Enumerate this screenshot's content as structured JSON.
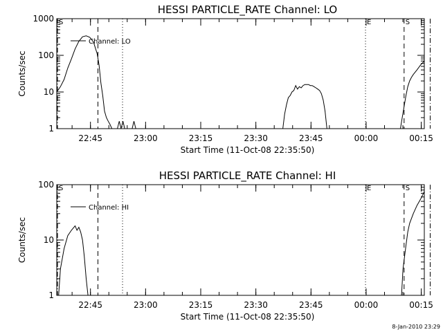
{
  "footer": {
    "date": "8-Jan-2010 23:29"
  },
  "chart_data": [
    {
      "type": "line",
      "title": "HESSI PARTICLE_RATE Channel: LO",
      "xlabel": "Start Time (11-Oct-08 22:35:50)",
      "ylabel": "Counts/sec",
      "yscale": "log",
      "ylim": [
        1,
        1000
      ],
      "yticks": [
        "1",
        "10",
        "100",
        "1000"
      ],
      "xlim_minutes": [
        0,
        100
      ],
      "xtick_labels": [
        "22:45",
        "23:00",
        "23:15",
        "23:30",
        "23:45",
        "00:00",
        "00:15"
      ],
      "xtick_minutes": [
        9.17,
        24.17,
        39.17,
        54.17,
        69.17,
        84.17,
        99.17
      ],
      "legend": "Channel: LO",
      "markers": [
        {
          "label": "S",
          "minute": 0.2,
          "style": "dashdot"
        },
        {
          "label": "",
          "minute": 11.2,
          "style": "dashed"
        },
        {
          "label": "",
          "minute": 17.9,
          "style": "dotted"
        },
        {
          "label": "E",
          "minute": 84.0,
          "style": "dotted"
        },
        {
          "label": "S",
          "minute": 94.5,
          "style": "dashed"
        },
        {
          "label": "",
          "minute": 101.6,
          "style": "dashdot"
        }
      ],
      "series": [
        {
          "name": "Channel: LO",
          "segments": [
            [
              [
                0,
                10
              ],
              [
                1,
                14
              ],
              [
                2,
                22
              ],
              [
                3,
                45
              ],
              [
                4,
                80
              ],
              [
                5,
                150
              ],
              [
                6,
                240
              ],
              [
                7,
                320
              ],
              [
                8,
                340
              ],
              [
                9,
                310
              ],
              [
                10,
                230
              ],
              [
                11,
                110
              ],
              [
                11.5,
                55
              ],
              [
                12,
                18
              ],
              [
                12.5,
                8
              ],
              [
                13,
                3
              ],
              [
                13.5,
                2
              ],
              [
                14,
                1.6
              ],
              [
                14.5,
                1.3
              ],
              [
                15,
                1
              ]
            ],
            [
              [
                16.5,
                1
              ],
              [
                17,
                1.6
              ],
              [
                17.5,
                1
              ],
              [
                18,
                1.6
              ],
              [
                18.5,
                1
              ]
            ],
            [
              [
                20.5,
                1
              ],
              [
                21,
                1.6
              ],
              [
                21.5,
                1
              ]
            ],
            [
              [
                61.5,
                1
              ],
              [
                62,
                2.5
              ],
              [
                62.5,
                4.5
              ],
              [
                63,
                7
              ],
              [
                63.5,
                8
              ],
              [
                64,
                10
              ],
              [
                64.5,
                11
              ],
              [
                65,
                15
              ],
              [
                65.5,
                12
              ],
              [
                66,
                14
              ],
              [
                66.5,
                13
              ],
              [
                67,
                15
              ],
              [
                67.5,
                16
              ],
              [
                68,
                16
              ],
              [
                68.5,
                16
              ],
              [
                69,
                15
              ],
              [
                69.5,
                15
              ],
              [
                70,
                14
              ],
              [
                70.5,
                13
              ],
              [
                71,
                12
              ],
              [
                71.5,
                11
              ],
              [
                72,
                9
              ],
              [
                72.5,
                6
              ],
              [
                73,
                3
              ],
              [
                73.5,
                1
              ]
            ],
            [
              [
                93.5,
                1
              ],
              [
                94,
                2
              ],
              [
                94.5,
                4
              ],
              [
                95,
                8
              ],
              [
                95.5,
                14
              ],
              [
                96,
                20
              ],
              [
                96.5,
                25
              ],
              [
                97,
                30
              ],
              [
                98,
                40
              ],
              [
                99,
                55
              ],
              [
                100,
                70
              ],
              [
                101,
                110
              ],
              [
                101.6,
                160
              ]
            ]
          ]
        }
      ]
    },
    {
      "type": "line",
      "title": "HESSI PARTICLE_RATE Channel: HI",
      "xlabel": "Start Time (11-Oct-08 22:35:50)",
      "ylabel": "Counts/sec",
      "yscale": "log",
      "ylim": [
        1,
        100
      ],
      "yticks": [
        "1",
        "10",
        "100"
      ],
      "xlim_minutes": [
        0,
        100
      ],
      "xtick_labels": [
        "22:45",
        "23:00",
        "23:15",
        "23:30",
        "23:45",
        "00:00",
        "00:15"
      ],
      "xtick_minutes": [
        9.17,
        24.17,
        39.17,
        54.17,
        69.17,
        84.17,
        99.17
      ],
      "legend": "Channel: HI",
      "markers": [
        {
          "label": "S",
          "minute": 0.2,
          "style": "dashdot"
        },
        {
          "label": "",
          "minute": 11.2,
          "style": "dashed"
        },
        {
          "label": "",
          "minute": 17.9,
          "style": "dotted"
        },
        {
          "label": "E",
          "minute": 84.0,
          "style": "dotted"
        },
        {
          "label": "S",
          "minute": 94.5,
          "style": "dashed"
        },
        {
          "label": "",
          "minute": 101.6,
          "style": "dashdot"
        }
      ],
      "series": [
        {
          "name": "Channel: HI",
          "segments": [
            [
              [
                0.5,
                1
              ],
              [
                1,
                3
              ],
              [
                2,
                7
              ],
              [
                3,
                12
              ],
              [
                4,
                15
              ],
              [
                5,
                18
              ],
              [
                5.5,
                15
              ],
              [
                6,
                17
              ],
              [
                6.5,
                14
              ],
              [
                7,
                10
              ],
              [
                7.5,
                5
              ],
              [
                8,
                2
              ],
              [
                8.5,
                1
              ]
            ],
            [
              [
                93.8,
                1
              ],
              [
                94.2,
                3
              ],
              [
                95,
                8
              ],
              [
                95.5,
                14
              ],
              [
                96,
                20
              ],
              [
                97,
                30
              ],
              [
                98,
                42
              ],
              [
                99,
                55
              ],
              [
                100,
                75
              ],
              [
                101,
                95
              ],
              [
                101.6,
                100
              ]
            ]
          ]
        }
      ]
    }
  ]
}
